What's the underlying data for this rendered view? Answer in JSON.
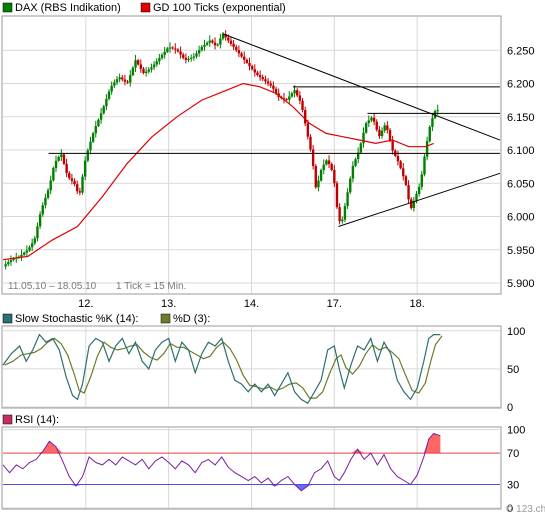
{
  "colors": {
    "price_up": "#008000",
    "price_down": "#c00000",
    "ma": "#e00000",
    "stoch_k": "#2e6f6f",
    "stoch_d": "#6b7d2a",
    "rsi_line": "#7a1fa0",
    "rsi_fill_over": "#ff6666",
    "rsi_fill_under": "#6a6aff",
    "rsi_70_line": "#e04040",
    "rsi_30_line": "#5050e0",
    "grid": "#d8d8d8",
    "panel_bg": "#ffffff",
    "frame": "#888888",
    "legend_dax": "#008000",
    "legend_ma": "#e00000",
    "legend_k": "#2e6f6f",
    "legend_d": "#6b7d2a",
    "legend_rsi": "#c03060"
  },
  "main": {
    "legend": [
      {
        "label": "DAX (RBS Indikation)",
        "color_key": "legend_dax"
      },
      {
        "label": "GD 100 Ticks (exponential)",
        "color_key": "legend_ma"
      }
    ],
    "date_range_label": "11.05.10 – 18.05.10",
    "tick_label": "1 Tick = 15 Min.",
    "x_labels": [
      "12.",
      "13.",
      "14.",
      "17.",
      "18."
    ],
    "watermark": "© 123.ch"
  },
  "stoch": {
    "legend": [
      {
        "label": "Slow Stochastic %K (14):",
        "color_key": "legend_k"
      },
      {
        "label": "%D (3):",
        "color_key": "legend_d"
      }
    ]
  },
  "rsi": {
    "legend": [
      {
        "label": "RSI (14):",
        "color_key": "legend_rsi"
      }
    ]
  },
  "chart_data": [
    {
      "type": "candlestick",
      "series": [
        {
          "name": "DAX (RBS Indikation)"
        },
        {
          "name": "GD 100 Ticks (exponential)"
        }
      ],
      "x": [
        "11.05.10",
        "12.05.10",
        "13.05.10",
        "14.05.10",
        "17.05.10",
        "18.05.10"
      ],
      "close_path": [
        [
          0.0,
          5925
        ],
        [
          0.1,
          5935
        ],
        [
          0.2,
          5940
        ],
        [
          0.3,
          5950
        ],
        [
          0.38,
          5965
        ],
        [
          0.46,
          6010
        ],
        [
          0.56,
          6045
        ],
        [
          0.62,
          6080
        ],
        [
          0.7,
          6095
        ],
        [
          0.78,
          6060
        ],
        [
          0.86,
          6050
        ],
        [
          0.92,
          6030
        ],
        [
          1.0,
          6090
        ],
        [
          1.1,
          6130
        ],
        [
          1.2,
          6160
        ],
        [
          1.3,
          6195
        ],
        [
          1.4,
          6210
        ],
        [
          1.5,
          6200
        ],
        [
          1.6,
          6235
        ],
        [
          1.7,
          6215
        ],
        [
          1.8,
          6225
        ],
        [
          1.9,
          6240
        ],
        [
          2.0,
          6255
        ],
        [
          2.1,
          6250
        ],
        [
          2.2,
          6235
        ],
        [
          2.3,
          6240
        ],
        [
          2.4,
          6255
        ],
        [
          2.5,
          6265
        ],
        [
          2.58,
          6255
        ],
        [
          2.65,
          6275
        ],
        [
          2.75,
          6260
        ],
        [
          2.85,
          6245
        ],
        [
          2.95,
          6230
        ],
        [
          3.05,
          6215
        ],
        [
          3.15,
          6205
        ],
        [
          3.25,
          6195
        ],
        [
          3.32,
          6180
        ],
        [
          3.42,
          6175
        ],
        [
          3.52,
          6190
        ],
        [
          3.6,
          6170
        ],
        [
          3.68,
          6120
        ],
        [
          3.73,
          6090
        ],
        [
          3.78,
          6040
        ],
        [
          3.84,
          6070
        ],
        [
          3.9,
          6085
        ],
        [
          3.96,
          6075
        ],
        [
          4.0,
          6050
        ],
        [
          4.04,
          6005
        ],
        [
          4.08,
          5985
        ],
        [
          4.15,
          6030
        ],
        [
          4.22,
          6075
        ],
        [
          4.3,
          6100
        ],
        [
          4.38,
          6140
        ],
        [
          4.46,
          6150
        ],
        [
          4.54,
          6120
        ],
        [
          4.62,
          6140
        ],
        [
          4.7,
          6100
        ],
        [
          4.78,
          6080
        ],
        [
          4.86,
          6050
        ],
        [
          4.92,
          6010
        ],
        [
          4.98,
          6030
        ],
        [
          5.04,
          6050
        ],
        [
          5.1,
          6100
        ],
        [
          5.16,
          6140
        ],
        [
          5.22,
          6160
        ],
        [
          5.26,
          6160
        ]
      ],
      "ma_path": [
        [
          0.0,
          5935
        ],
        [
          0.3,
          5940
        ],
        [
          0.6,
          5965
        ],
        [
          0.9,
          5985
        ],
        [
          1.2,
          6030
        ],
        [
          1.5,
          6080
        ],
        [
          1.8,
          6120
        ],
        [
          2.1,
          6150
        ],
        [
          2.4,
          6175
        ],
        [
          2.7,
          6190
        ],
        [
          2.9,
          6200
        ],
        [
          3.1,
          6195
        ],
        [
          3.3,
          6185
        ],
        [
          3.5,
          6165
        ],
        [
          3.7,
          6140
        ],
        [
          3.9,
          6125
        ],
        [
          4.1,
          6120
        ],
        [
          4.3,
          6115
        ],
        [
          4.5,
          6110
        ],
        [
          4.7,
          6115
        ],
        [
          4.9,
          6105
        ],
        [
          5.1,
          6105
        ],
        [
          5.2,
          6110
        ]
      ],
      "horizontal_lines": [
        {
          "y": 6095,
          "x_from": 0.55,
          "x_to": 6.0
        },
        {
          "y": 6195,
          "x_from": 3.5,
          "x_to": 6.0
        },
        {
          "y": 6155,
          "x_from": 4.4,
          "x_to": 6.0
        }
      ],
      "trend_lines": [
        {
          "from": [
            2.65,
            6275
          ],
          "to": [
            6.0,
            6115
          ]
        },
        {
          "from": [
            4.05,
            5985
          ],
          "to": [
            6.0,
            6065
          ]
        }
      ],
      "y_ticks": [
        5900,
        5950,
        6000,
        6050,
        6100,
        6150,
        6200,
        6250
      ],
      "y_tick_labels": [
        "5.900",
        "5.950",
        "6.000",
        "6.050",
        "6.100",
        "6.150",
        "6.200",
        "6.250"
      ],
      "ylim": [
        5885,
        6300
      ],
      "xlim": [
        0.0,
        6.0
      ],
      "grid": true
    },
    {
      "type": "line",
      "series": [
        {
          "name": "Slow Stochastic %K (14)"
        },
        {
          "name": "%D (3)"
        }
      ],
      "path": [
        [
          0.0,
          55
        ],
        [
          0.1,
          70
        ],
        [
          0.2,
          80
        ],
        [
          0.28,
          60
        ],
        [
          0.36,
          75
        ],
        [
          0.44,
          95
        ],
        [
          0.52,
          85
        ],
        [
          0.6,
          90
        ],
        [
          0.68,
          75
        ],
        [
          0.76,
          40
        ],
        [
          0.84,
          15
        ],
        [
          0.9,
          10
        ],
        [
          0.96,
          30
        ],
        [
          1.04,
          80
        ],
        [
          1.12,
          90
        ],
        [
          1.2,
          85
        ],
        [
          1.28,
          60
        ],
        [
          1.36,
          80
        ],
        [
          1.44,
          90
        ],
        [
          1.52,
          70
        ],
        [
          1.6,
          85
        ],
        [
          1.68,
          60
        ],
        [
          1.76,
          50
        ],
        [
          1.84,
          75
        ],
        [
          1.92,
          85
        ],
        [
          2.0,
          90
        ],
        [
          2.08,
          60
        ],
        [
          2.16,
          85
        ],
        [
          2.24,
          75
        ],
        [
          2.32,
          45
        ],
        [
          2.4,
          70
        ],
        [
          2.48,
          85
        ],
        [
          2.56,
          80
        ],
        [
          2.64,
          90
        ],
        [
          2.72,
          60
        ],
        [
          2.8,
          35
        ],
        [
          2.88,
          30
        ],
        [
          2.96,
          20
        ],
        [
          3.04,
          30
        ],
        [
          3.12,
          20
        ],
        [
          3.2,
          30
        ],
        [
          3.28,
          15
        ],
        [
          3.36,
          30
        ],
        [
          3.44,
          45
        ],
        [
          3.52,
          20
        ],
        [
          3.6,
          10
        ],
        [
          3.68,
          5
        ],
        [
          3.76,
          20
        ],
        [
          3.84,
          35
        ],
        [
          3.92,
          75
        ],
        [
          4.0,
          80
        ],
        [
          4.06,
          50
        ],
        [
          4.12,
          25
        ],
        [
          4.2,
          55
        ],
        [
          4.28,
          80
        ],
        [
          4.36,
          75
        ],
        [
          4.44,
          90
        ],
        [
          4.52,
          60
        ],
        [
          4.6,
          85
        ],
        [
          4.68,
          70
        ],
        [
          4.76,
          35
        ],
        [
          4.84,
          20
        ],
        [
          4.92,
          10
        ],
        [
          5.0,
          25
        ],
        [
          5.08,
          60
        ],
        [
          5.14,
          90
        ],
        [
          5.2,
          95
        ],
        [
          5.28,
          95
        ]
      ],
      "y_ticks": [
        0,
        50,
        100
      ],
      "ylim": [
        0,
        105
      ],
      "xlim": [
        0.0,
        6.0
      ],
      "grid": true
    },
    {
      "type": "line",
      "series": [
        {
          "name": "RSI (14)"
        }
      ],
      "path": [
        [
          0.0,
          55
        ],
        [
          0.08,
          45
        ],
        [
          0.16,
          55
        ],
        [
          0.24,
          50
        ],
        [
          0.32,
          58
        ],
        [
          0.4,
          62
        ],
        [
          0.48,
          72
        ],
        [
          0.56,
          85
        ],
        [
          0.64,
          78
        ],
        [
          0.72,
          60
        ],
        [
          0.8,
          40
        ],
        [
          0.88,
          28
        ],
        [
          0.96,
          40
        ],
        [
          1.04,
          65
        ],
        [
          1.12,
          58
        ],
        [
          1.2,
          55
        ],
        [
          1.28,
          62
        ],
        [
          1.36,
          55
        ],
        [
          1.44,
          65
        ],
        [
          1.52,
          60
        ],
        [
          1.6,
          55
        ],
        [
          1.68,
          62
        ],
        [
          1.76,
          50
        ],
        [
          1.84,
          60
        ],
        [
          1.92,
          65
        ],
        [
          2.0,
          58
        ],
        [
          2.08,
          50
        ],
        [
          2.16,
          60
        ],
        [
          2.24,
          55
        ],
        [
          2.32,
          45
        ],
        [
          2.4,
          58
        ],
        [
          2.48,
          62
        ],
        [
          2.56,
          55
        ],
        [
          2.64,
          65
        ],
        [
          2.72,
          52
        ],
        [
          2.8,
          45
        ],
        [
          2.88,
          40
        ],
        [
          2.96,
          35
        ],
        [
          3.04,
          40
        ],
        [
          3.12,
          32
        ],
        [
          3.2,
          38
        ],
        [
          3.28,
          28
        ],
        [
          3.36,
          35
        ],
        [
          3.44,
          40
        ],
        [
          3.52,
          30
        ],
        [
          3.6,
          22
        ],
        [
          3.68,
          28
        ],
        [
          3.76,
          45
        ],
        [
          3.84,
          50
        ],
        [
          3.92,
          60
        ],
        [
          4.0,
          40
        ],
        [
          4.06,
          35
        ],
        [
          4.12,
          45
        ],
        [
          4.2,
          62
        ],
        [
          4.28,
          75
        ],
        [
          4.36,
          62
        ],
        [
          4.44,
          70
        ],
        [
          4.52,
          55
        ],
        [
          4.6,
          68
        ],
        [
          4.68,
          50
        ],
        [
          4.76,
          40
        ],
        [
          4.84,
          35
        ],
        [
          4.92,
          30
        ],
        [
          5.0,
          42
        ],
        [
          5.08,
          65
        ],
        [
          5.14,
          88
        ],
        [
          5.2,
          95
        ],
        [
          5.28,
          92
        ]
      ],
      "levels": [
        30,
        70
      ],
      "y_ticks": [
        0,
        30,
        70,
        100
      ],
      "ylim": [
        0,
        102
      ],
      "xlim": [
        0.0,
        6.0
      ],
      "grid": true
    }
  ]
}
